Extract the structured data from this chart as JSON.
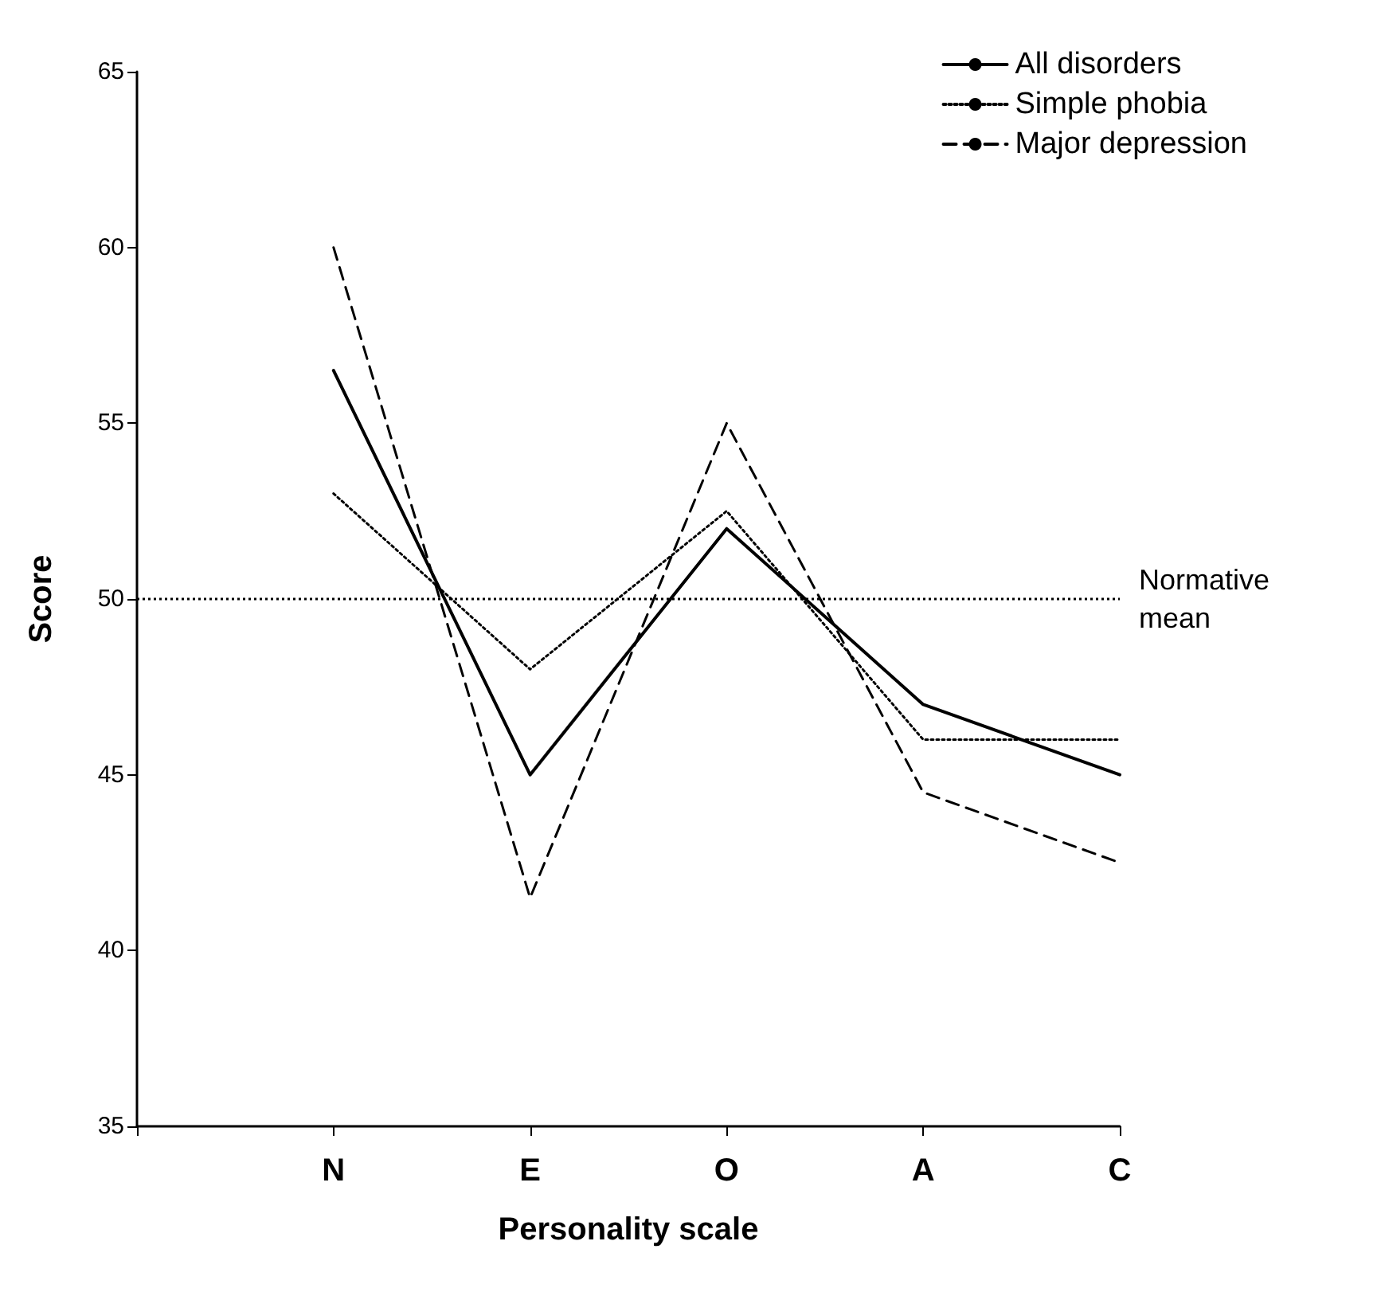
{
  "chart_data": {
    "type": "line",
    "xlabel": "Personality scale",
    "ylabel": "Score",
    "categories": [
      null,
      "N",
      "E",
      "O",
      "A",
      "C"
    ],
    "series": [
      {
        "name": "All disorders",
        "color": "#000000",
        "line_style": "solid",
        "values": [
          null,
          56.5,
          45,
          52,
          47,
          45
        ]
      },
      {
        "name": "Simple phobia",
        "color": "#000000",
        "line_style": "dotted",
        "values": [
          null,
          53,
          48,
          52.5,
          46,
          46
        ]
      },
      {
        "name": "Major depression",
        "color": "#000000",
        "line_style": "dashed",
        "values": [
          null,
          60,
          41.5,
          55,
          44.5,
          42.5
        ]
      }
    ],
    "ylim": [
      35,
      65
    ],
    "yticks": [
      35,
      40,
      45,
      50,
      55,
      60,
      65
    ],
    "grid": false,
    "legend": "top right",
    "marker": "none",
    "ref_lines": [
      {
        "axis": "y",
        "value": 50,
        "label": "Normative mean",
        "color": "#000000",
        "line_style": "dotted"
      }
    ]
  }
}
